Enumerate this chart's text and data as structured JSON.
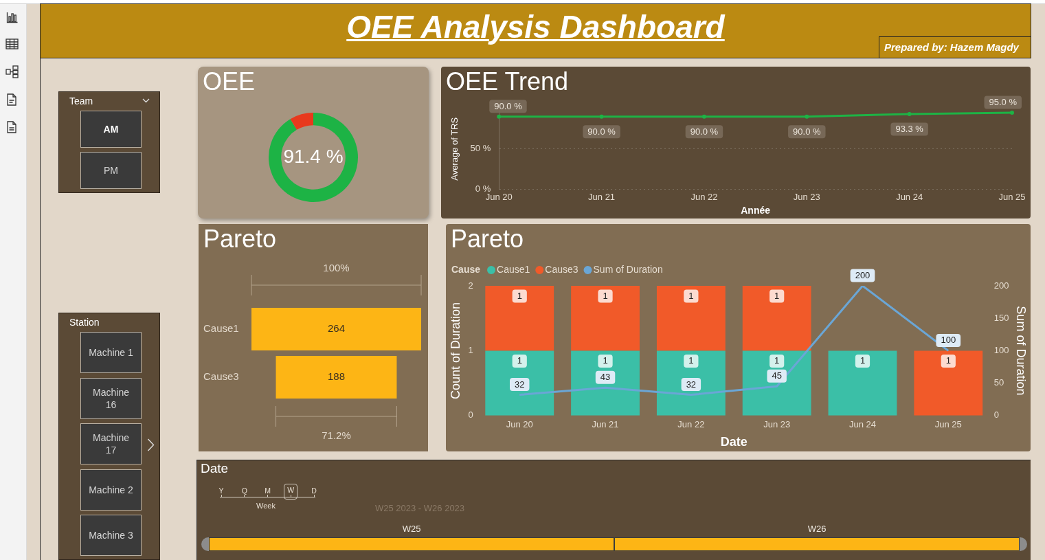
{
  "chart_data": [
    {
      "type": "other",
      "title": "OEE Analysis Dashboard",
      "annotations": [
        "Prepared by: Hazem Magdy"
      ]
    },
    {
      "type": "other",
      "title": "Team",
      "categories": [
        "AM",
        "PM"
      ]
    },
    {
      "type": "other",
      "title": "Station",
      "categories": [
        "Machine 1",
        "Machine 16",
        "Machine 17",
        "Machine 2",
        "Machine 3"
      ]
    },
    {
      "type": "donut",
      "title": "OEE",
      "categories": [
        null,
        null
      ],
      "values": [
        91.4,
        8.6
      ],
      "colors": [
        "#1db345",
        "#e8391d"
      ],
      "value_labels": [
        "91.4 %",
        null
      ]
    },
    {
      "type": "line",
      "title": "OEE Trend",
      "categories": [
        "Jun 20",
        "Jun 21",
        "Jun 22",
        "Jun 23",
        "Jun 24",
        "Jun 25"
      ],
      "values": [
        90.0,
        90.0,
        90.0,
        90.0,
        93.3,
        95.0
      ],
      "value_labels": [
        "90.0 %",
        "90.0 %",
        "90.0 %",
        "90.0 %",
        "93.3 %",
        "95.0 %"
      ],
      "color": "#1db345",
      "xlabel": "Année",
      "ylabel": "Average of TRS",
      "ylim": [
        0,
        100
      ],
      "yticks": [
        {
          "value": 0,
          "label": "0 %"
        },
        {
          "value": 50,
          "label": "50 %"
        }
      ],
      "grid": "y",
      "marker": "circle"
    },
    {
      "type": "other",
      "title": "Pareto",
      "categories": [
        "Cause1",
        "Cause3"
      ],
      "values": [
        264,
        188
      ],
      "color": "#fdb515",
      "data_labels": true,
      "annotations": [
        "100%",
        "71.2%"
      ]
    },
    {
      "type": "bar",
      "title": "Pareto",
      "stacked": true,
      "categories": [
        "Jun 20",
        "Jun 21",
        "Jun 22",
        "Jun 23",
        "Jun 24",
        "Jun 25"
      ],
      "series": [
        {
          "name": "Cause1",
          "color": "#3bbfa7",
          "values": [
            1,
            1,
            1,
            1,
            1,
            null
          ]
        },
        {
          "name": "Cause3",
          "color": "#f15a29",
          "values": [
            1,
            1,
            1,
            1,
            null,
            1
          ]
        },
        {
          "name": "Sum of Duration",
          "type": "line",
          "axis": "y2",
          "color": "#6aa6d6",
          "values": [
            32,
            43,
            32,
            45,
            200,
            100
          ]
        }
      ],
      "xlabel": "Date",
      "ylabel": "Count of Duration",
      "y2label": "Sum of Duration",
      "legend_title": "Cause",
      "legend": "top left",
      "ylim": [
        0,
        2
      ],
      "yticks": [
        0,
        1,
        2
      ],
      "y2lim": [
        0,
        200
      ],
      "y2ticks": [
        0,
        50,
        100,
        150,
        200
      ],
      "data_labels": true,
      "marker": "none"
    },
    {
      "type": "other",
      "title": "Date",
      "categories": [
        "W25",
        "W26"
      ],
      "color": "#fdb515",
      "annotations": [
        "Y",
        "Q",
        "M",
        "W",
        "D",
        "Week",
        "W25 2023 - W26 2023"
      ]
    }
  ]
}
